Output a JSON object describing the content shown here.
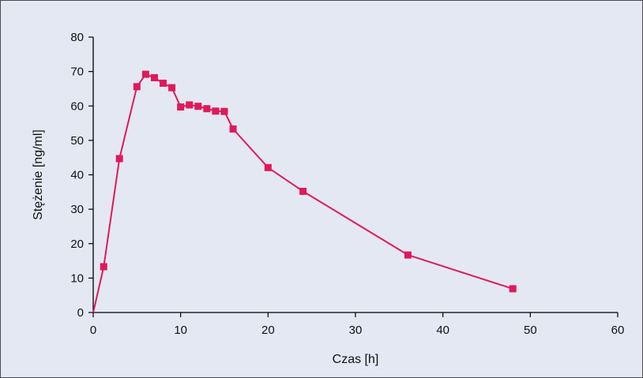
{
  "colors": {
    "background": "#e4e8f3",
    "series": "#e0195a",
    "axis": "#000000"
  },
  "chart_data": {
    "type": "line",
    "title": "",
    "xlabel": "Czas [h]",
    "ylabel": "Stężenie [ng/ml]",
    "xlim": [
      0,
      60
    ],
    "ylim": [
      0,
      80
    ],
    "x_ticks": [
      0,
      10,
      20,
      30,
      40,
      50,
      60
    ],
    "y_ticks": [
      0,
      10,
      20,
      30,
      40,
      50,
      60,
      70,
      80
    ],
    "grid": false,
    "legend": "none",
    "markers": "square",
    "series": [
      {
        "x": [
          0,
          1.2,
          3,
          5,
          6,
          7,
          8,
          9,
          10,
          11,
          12,
          13,
          14,
          15,
          16,
          20,
          24,
          36,
          48
        ],
        "y": [
          0,
          13.3,
          44.7,
          65.6,
          69.2,
          68.2,
          66.6,
          65.3,
          59.7,
          60.3,
          59.9,
          59.2,
          58.5,
          58.4,
          53.3,
          42.1,
          35.2,
          16.7,
          6.9
        ]
      }
    ]
  }
}
